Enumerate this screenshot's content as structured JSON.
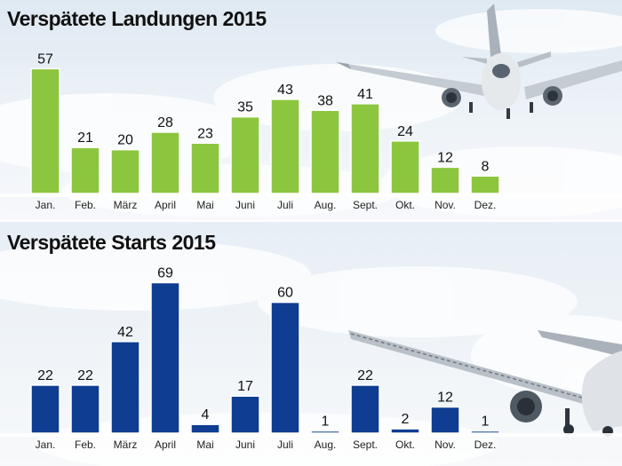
{
  "chart_data": [
    {
      "type": "bar",
      "title": "Verspätete Landungen 2015",
      "categories": [
        "Jan.",
        "Feb.",
        "März",
        "April",
        "Mai",
        "Juni",
        "Juli",
        "Aug.",
        "Sept.",
        "Okt.",
        "Nov.",
        "Dez."
      ],
      "values": [
        57,
        21,
        20,
        28,
        23,
        35,
        43,
        38,
        41,
        24,
        12,
        8
      ],
      "ylim": [
        0,
        60
      ],
      "bar_color": "#8cc63f",
      "grid": false,
      "legend": "none"
    },
    {
      "type": "bar",
      "title": "Verspätete Starts 2015",
      "categories": [
        "Jan.",
        "Feb.",
        "März",
        "April",
        "Mai",
        "Juni",
        "Juli",
        "Aug.",
        "Sept.",
        "Okt.",
        "Nov.",
        "Dez."
      ],
      "values": [
        22,
        22,
        42,
        69,
        4,
        17,
        60,
        1,
        22,
        2,
        12,
        1
      ],
      "ylim": [
        0,
        70
      ],
      "bar_color": "#0e3d91",
      "grid": false,
      "legend": "none"
    }
  ]
}
